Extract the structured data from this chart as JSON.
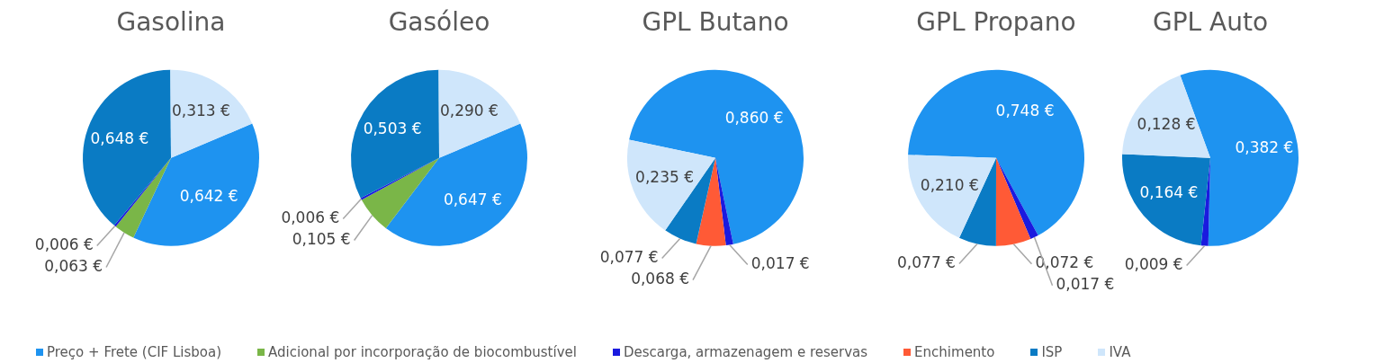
{
  "chart_data": [
    {
      "type": "pie",
      "title": "Gasolina",
      "categories": [
        "Preço + Frete (CIF Lisboa)",
        "Adicional por incorporação de biocombustível",
        "Descarga, armazenagem e reservas",
        "ISP",
        "IVA"
      ],
      "values": [
        0.642,
        0.063,
        0.006,
        0.648,
        0.313
      ],
      "colors": [
        "#1e93f0",
        "#7ab648",
        "#1a1adf",
        "#0a7bc4",
        "#cfe6fb"
      ],
      "value_labels": [
        "0,642 €",
        "0,063 €",
        "0,006 €",
        "0,648 €",
        "0,313 €"
      ],
      "legend": "bottom"
    },
    {
      "type": "pie",
      "title": "Gasóleo",
      "categories": [
        null,
        null,
        null,
        null,
        null
      ],
      "values": [
        0.647,
        0.105,
        0.006,
        0.503,
        0.29
      ],
      "colors": [
        "#1e93f0",
        "#7ab648",
        "#1a1adf",
        "#0a7bc4",
        "#cfe6fb"
      ],
      "value_labels": [
        "0,647 €",
        "0,105 €",
        "0,006 €",
        "0,503 €",
        "0,290 €"
      ]
    },
    {
      "type": "pie",
      "title": "GPL Butano",
      "categories": [
        null,
        null,
        "Enchimento",
        null,
        null
      ],
      "values": [
        0.86,
        0.017,
        0.068,
        0.077,
        0.235
      ],
      "colors": [
        "#1e93f0",
        "#1a1adf",
        "#ff5a36",
        "#0a7bc4",
        "#cfe6fb"
      ],
      "value_labels": [
        "0,860 €",
        "0,017 €",
        "0,068 €",
        "0,077 €",
        "0,235 €"
      ],
      "legend": "bottom"
    },
    {
      "type": "pie",
      "title": "GPL Propano",
      "categories": [
        null,
        null,
        null,
        null,
        null
      ],
      "values": [
        0.748,
        0.017,
        0.072,
        0.077,
        0.21
      ],
      "colors": [
        "#1e93f0",
        "#1a1adf",
        "#ff5a36",
        "#0a7bc4",
        "#cfe6fb"
      ],
      "value_labels": [
        "0,748 €",
        "0,017 €",
        "0,072 €",
        "0,077 €",
        "0,210 €"
      ]
    },
    {
      "type": "pie",
      "title": "GPL Auto",
      "categories": [
        null,
        null,
        null,
        null
      ],
      "values": [
        0.382,
        0.009,
        0.164,
        0.128
      ],
      "colors": [
        "#1e93f0",
        "#1a1adf",
        "#0a7bc4",
        "#cfe6fb"
      ],
      "value_labels": [
        "0,382 €",
        "0,009 €",
        "0,164 €",
        "0,128 €"
      ]
    }
  ]
}
